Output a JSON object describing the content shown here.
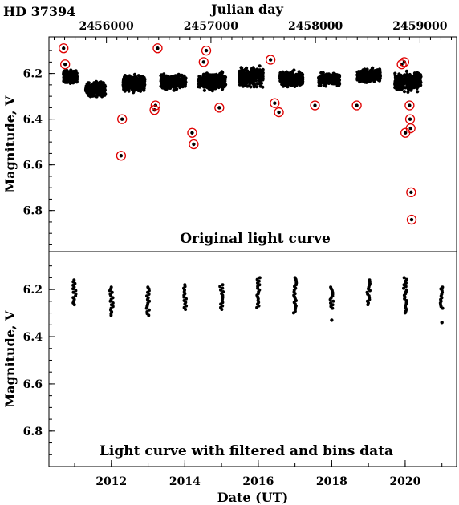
{
  "star": "HD 37394",
  "top_axis": {
    "label": "Julian day",
    "ticks": [
      "2456000",
      "2457000",
      "2458000",
      "2459000"
    ],
    "values": [
      2456000,
      2457000,
      2458000,
      2459000
    ]
  },
  "bottom_axis": {
    "label": "Date (UT)",
    "ticks": [
      "2012",
      "2014",
      "2016",
      "2018",
      "2020"
    ],
    "values": [
      2012,
      2014,
      2016,
      2018,
      2020
    ]
  },
  "chart_data": [
    {
      "type": "scatter",
      "title": "Original light curve",
      "xlabel": "Julian day",
      "ylabel": "Magnitude, V",
      "xlim": [
        2455450,
        2459350
      ],
      "ylim": [
        6.98,
        6.04
      ],
      "y_ticks": [
        6.2,
        6.4,
        6.6,
        6.8
      ],
      "y_tick_labels": [
        "6.2",
        "6.4",
        "6.6",
        "6.8"
      ],
      "seasons": [
        {
          "jd": [
            2455590,
            2455720
          ],
          "ymin": 6.18,
          "ymax": 6.25
        },
        {
          "jd": [
            2455800,
            2455990
          ],
          "ymin": 6.23,
          "ymax": 6.31
        },
        {
          "jd": [
            2456160,
            2456370
          ],
          "ymin": 6.19,
          "ymax": 6.29
        },
        {
          "jd": [
            2456520,
            2456760
          ],
          "ymin": 6.19,
          "ymax": 6.28
        },
        {
          "jd": [
            2456880,
            2457140
          ],
          "ymin": 6.18,
          "ymax": 6.29
        },
        {
          "jd": [
            2457270,
            2457500
          ],
          "ymin": 6.16,
          "ymax": 6.27
        },
        {
          "jd": [
            2457660,
            2457880
          ],
          "ymin": 6.18,
          "ymax": 6.27
        },
        {
          "jd": [
            2458030,
            2458230
          ],
          "ymin": 6.19,
          "ymax": 6.26
        },
        {
          "jd": [
            2458400,
            2458620
          ],
          "ymin": 6.17,
          "ymax": 6.25
        },
        {
          "jd": [
            2458760,
            2459010
          ],
          "ymin": 6.18,
          "ymax": 6.29
        }
      ],
      "outliers_circled": [
        [
          2455590,
          6.09
        ],
        [
          2455605,
          6.16
        ],
        [
          2456150,
          6.4
        ],
        [
          2456140,
          6.56
        ],
        [
          2456460,
          6.36
        ],
        [
          2456470,
          6.34
        ],
        [
          2456490,
          6.09
        ],
        [
          2456820,
          6.46
        ],
        [
          2456835,
          6.51
        ],
        [
          2456930,
          6.15
        ],
        [
          2456955,
          6.1
        ],
        [
          2457080,
          6.35
        ],
        [
          2457570,
          6.14
        ],
        [
          2457610,
          6.33
        ],
        [
          2457650,
          6.37
        ],
        [
          2457995,
          6.34
        ],
        [
          2458395,
          6.34
        ],
        [
          2458825,
          6.16
        ],
        [
          2458850,
          6.15
        ],
        [
          2458860,
          6.46
        ],
        [
          2458900,
          6.34
        ],
        [
          2458905,
          6.4
        ],
        [
          2458910,
          6.44
        ],
        [
          2458915,
          6.72
        ],
        [
          2458920,
          6.84
        ]
      ]
    },
    {
      "type": "scatter",
      "title": "Light curve  with filtered and bins data",
      "xlabel": "Date (UT)",
      "ylabel": "Magnitude, V",
      "xlim": [
        2010.3,
        2021.4
      ],
      "ylim": [
        6.95,
        6.04
      ],
      "y_ticks": [
        6.2,
        6.4,
        6.6,
        6.8
      ],
      "y_tick_labels": [
        "6.2",
        "6.4",
        "6.6",
        "6.8"
      ],
      "x": [
        2011.0,
        2012.0,
        2013.0,
        2014.0,
        2015.0,
        2016.0,
        2017.0,
        2018.0,
        2019.0,
        2020.0,
        2021.0
      ],
      "ymin": [
        6.16,
        6.19,
        6.19,
        6.18,
        6.18,
        6.15,
        6.15,
        6.19,
        6.16,
        6.15,
        6.19
      ],
      "ymax": [
        6.27,
        6.31,
        6.31,
        6.29,
        6.29,
        6.28,
        6.3,
        6.28,
        6.27,
        6.3,
        6.28
      ],
      "low_points": [
        [
          2018.0,
          6.33
        ],
        [
          2021.0,
          6.34
        ]
      ]
    }
  ]
}
